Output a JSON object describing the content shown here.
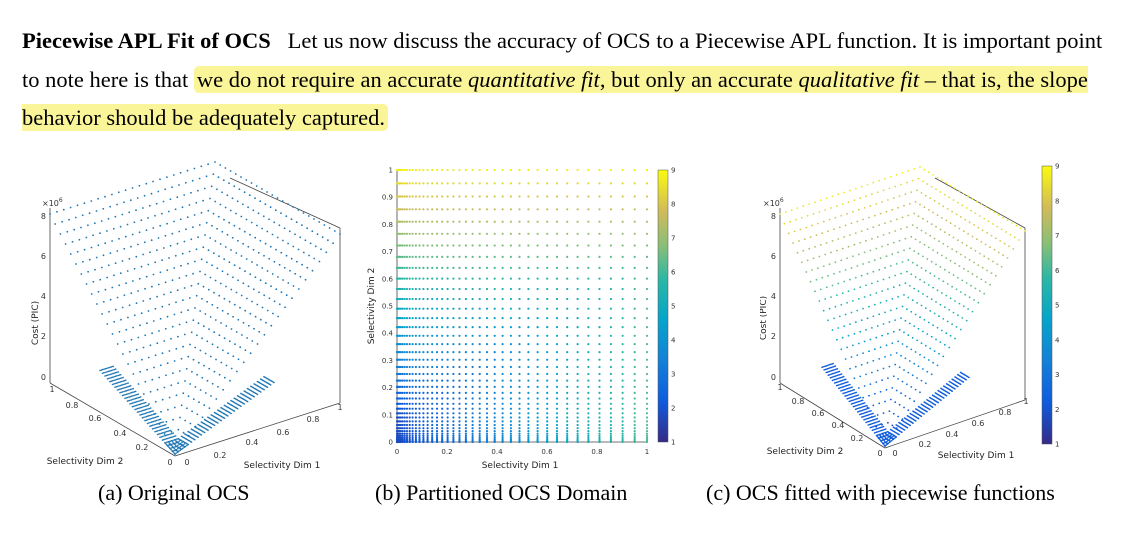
{
  "paragraph": {
    "heading": "Piecewise APL Fit of OCS",
    "text1": "Let us now discuss the accuracy of OCS to a Piecewise APL function. It is important point to note here is that ",
    "hl1": "we do not require an accurate ",
    "hl1_em": "quantitative fit",
    "hl2": ", but only an accurate ",
    "hl2_em": "qualitative fit",
    "hl3": " – that is, the slope behavior should be adequately captured."
  },
  "figures": [
    {
      "caption": "(a) Original OCS",
      "zlabel": "Cost (PIC)",
      "xlabel": "Selectivity Dim 1",
      "ylabel": "Selectivity Dim 2",
      "multiplier": "×10",
      "multiplier_exp": "6",
      "z_ticks": [
        "0",
        "2",
        "4",
        "6",
        "8"
      ],
      "x_ticks": [
        "0",
        "0.2",
        "0.4",
        "0.6",
        "0.8",
        "1"
      ],
      "y_ticks": [
        "0",
        "0.2",
        "0.4",
        "0.6",
        "0.8",
        "1"
      ]
    },
    {
      "caption": "(b) Partitioned OCS Domain",
      "xlabel": "Selectivity Dim 1",
      "ylabel": "Selectivity Dim 2",
      "x_ticks": [
        "0",
        "0.2",
        "0.4",
        "0.6",
        "0.8",
        "1"
      ],
      "y_ticks": [
        "0",
        "0.1",
        "0.2",
        "0.3",
        "0.4",
        "0.5",
        "0.6",
        "0.7",
        "0.8",
        "0.9",
        "1"
      ],
      "colorbar_ticks": [
        "1",
        "2",
        "3",
        "4",
        "5",
        "6",
        "7",
        "8",
        "9"
      ]
    },
    {
      "caption": "(c) OCS fitted with piecewise functions",
      "zlabel": "Cost (PIC)",
      "xlabel": "Selectivity Dim 1",
      "ylabel": "Selectivity Dim 2",
      "multiplier": "×10",
      "multiplier_exp": "6",
      "z_ticks": [
        "0",
        "2",
        "4",
        "6",
        "8"
      ],
      "x_ticks": [
        "0",
        "0.2",
        "0.4",
        "0.6",
        "0.8",
        "1"
      ],
      "y_ticks": [
        "0",
        "0.2",
        "0.4",
        "0.6",
        "0.8",
        "1"
      ],
      "colorbar_ticks": [
        "1",
        "2",
        "3",
        "4",
        "5",
        "6",
        "7",
        "8",
        "9"
      ]
    }
  ],
  "chart_data": [
    {
      "type": "scatter",
      "title": "",
      "xlabel": "Selectivity Dim 1",
      "ylabel": "Selectivity Dim 2",
      "zlabel": "Cost (PIC)",
      "multiplier": "×10^6",
      "xlim": [
        0,
        1
      ],
      "ylim": [
        0,
        1
      ],
      "zlim": [
        0,
        8
      ],
      "color": "#1f77b4"
    },
    {
      "type": "scatter",
      "title": "",
      "xlabel": "Selectivity Dim 1",
      "ylabel": "Selectivity Dim 2",
      "xlim": [
        0,
        1
      ],
      "ylim": [
        0,
        1
      ],
      "colorbar_range": [
        1,
        9
      ],
      "colormap": "parula"
    },
    {
      "type": "scatter",
      "title": "",
      "xlabel": "Selectivity Dim 1",
      "ylabel": "Selectivity Dim 2",
      "zlabel": "Cost (PIC)",
      "multiplier": "×10^6",
      "xlim": [
        0,
        1
      ],
      "ylim": [
        0,
        1
      ],
      "zlim": [
        0,
        8
      ],
      "colorbar_range": [
        1,
        9
      ],
      "colormap": "parula"
    }
  ]
}
